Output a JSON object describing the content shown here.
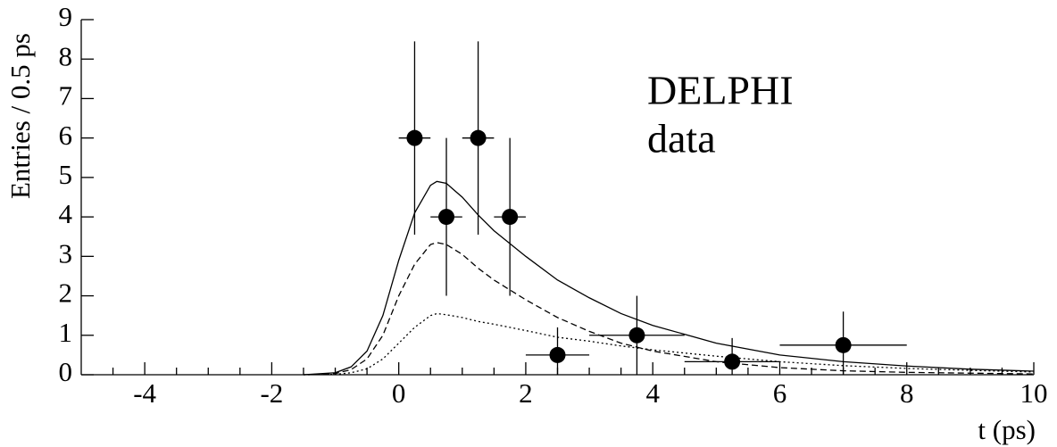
{
  "chart_data": {
    "type": "errorbar-fit",
    "xlabel": "t (ps)",
    "ylabel": "Entries / 0.5 ps",
    "annotation": [
      "DELPHI",
      "data"
    ],
    "xlim": [
      -5,
      10
    ],
    "ylim": [
      0,
      9
    ],
    "xticks": [
      -4,
      -2,
      0,
      2,
      4,
      6,
      8,
      10
    ],
    "xminorticks": [
      -4.5,
      -3.5,
      -3,
      -2.5,
      -1.5,
      -1,
      -0.5,
      0.5,
      1,
      1.5,
      2.5,
      3,
      3.5,
      4.5,
      5,
      5.5,
      6.5,
      7,
      7.5,
      8.5,
      9,
      9.5
    ],
    "yticks": [
      0,
      1,
      2,
      3,
      4,
      5,
      6,
      7,
      8,
      9
    ],
    "color": "#000000",
    "points": {
      "x": [
        0.25,
        0.75,
        1.25,
        1.75,
        2.5,
        3.75,
        5.25,
        7
      ],
      "y": [
        6,
        4,
        6,
        4,
        0.5,
        1,
        0.33,
        0.75
      ],
      "xerr": [
        0.25,
        0.25,
        0.25,
        0.25,
        0.5,
        0.75,
        0.75,
        1
      ],
      "yerr_low": [
        2.45,
        2,
        2.45,
        2,
        0.5,
        1,
        0.33,
        0.75
      ],
      "yerr_high": [
        2.45,
        2,
        2.45,
        2,
        0.7,
        1,
        0.6,
        0.85
      ]
    },
    "x": [
      -1.5,
      -1,
      -0.75,
      -0.5,
      -0.25,
      0,
      0.25,
      0.5,
      0.6,
      0.75,
      1,
      1.25,
      1.5,
      2,
      2.5,
      3,
      3.5,
      4,
      5,
      6,
      7,
      8,
      9,
      10
    ],
    "series": [
      {
        "style": "solid",
        "values": [
          0,
          0.05,
          0.2,
          0.6,
          1.5,
          2.9,
          4.1,
          4.8,
          4.9,
          4.85,
          4.5,
          4.05,
          3.65,
          3.0,
          2.4,
          1.95,
          1.55,
          1.25,
          0.8,
          0.5,
          0.33,
          0.22,
          0.14,
          0.09
        ]
      },
      {
        "style": "dashed",
        "values": [
          0,
          0.03,
          0.13,
          0.4,
          1.0,
          2.0,
          2.8,
          3.3,
          3.35,
          3.3,
          3.05,
          2.7,
          2.4,
          1.9,
          1.45,
          1.1,
          0.8,
          0.6,
          0.33,
          0.18,
          0.1,
          0.06,
          0.04,
          0.02
        ]
      },
      {
        "style": "dotted",
        "values": [
          0,
          0.01,
          0.05,
          0.15,
          0.4,
          0.8,
          1.2,
          1.5,
          1.55,
          1.52,
          1.45,
          1.35,
          1.28,
          1.12,
          0.95,
          0.85,
          0.73,
          0.63,
          0.47,
          0.33,
          0.23,
          0.16,
          0.11,
          0.07
        ]
      }
    ]
  }
}
